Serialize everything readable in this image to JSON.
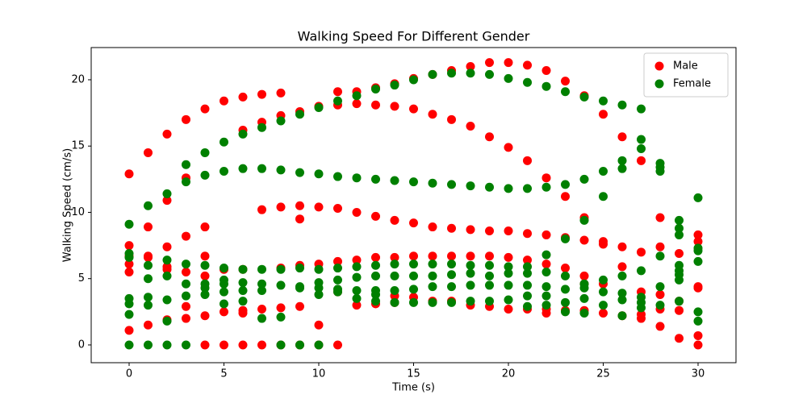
{
  "chart_data": {
    "type": "scatter",
    "title": "Walking Speed For Different Gender",
    "x_label": "Time (s)",
    "y_label": "Walking Speed (cm/s)",
    "xlim": [
      -2.0,
      32.0
    ],
    "ylim": [
      -1.34,
      22.43
    ],
    "xticks": [
      0,
      5,
      10,
      15,
      20,
      25,
      30
    ],
    "yticks": [
      0,
      5,
      10,
      15,
      20
    ],
    "legend": "upper right",
    "series": [
      {
        "name": "Male",
        "color": "#ff0000",
        "x": [
          0,
          0,
          0,
          0,
          0,
          0,
          1,
          1,
          1,
          1,
          1,
          2,
          2,
          2,
          2,
          2,
          2,
          3,
          3,
          3,
          3,
          3,
          3,
          4,
          4,
          4,
          4,
          4,
          4,
          5,
          5,
          5,
          5,
          6,
          6,
          6,
          6,
          6,
          6,
          7,
          7,
          7,
          7,
          7,
          8,
          8,
          8,
          8,
          8,
          8,
          9,
          9,
          9,
          9,
          9,
          9,
          10,
          10,
          10,
          10,
          10,
          11,
          11,
          11,
          11,
          11,
          11,
          12,
          12,
          12,
          12,
          12,
          13,
          13,
          13,
          13,
          13,
          14,
          14,
          14,
          14,
          14,
          14,
          15,
          15,
          15,
          15,
          15,
          16,
          16,
          16,
          16,
          16,
          17,
          17,
          17,
          17,
          17,
          18,
          18,
          18,
          18,
          18,
          19,
          19,
          19,
          19,
          19,
          20,
          20,
          20,
          20,
          20,
          21,
          21,
          21,
          21,
          21,
          22,
          22,
          22,
          22,
          22,
          22,
          23,
          23,
          23,
          23,
          23,
          24,
          24,
          24,
          24,
          24,
          24,
          25,
          25,
          25,
          25,
          25,
          26,
          26,
          26,
          26,
          27,
          27,
          27,
          27,
          27,
          28,
          28,
          28,
          28,
          28,
          29,
          29,
          29,
          29,
          30,
          30,
          30,
          30,
          30,
          30
        ],
        "values": [
          12.9,
          7.5,
          6.7,
          6.1,
          5.5,
          1.1,
          14.5,
          8.9,
          6.7,
          6.6,
          1.5,
          15.9,
          10.9,
          7.4,
          5.9,
          5.7,
          1.9,
          17.0,
          12.6,
          8.2,
          5.5,
          2.9,
          2.0,
          17.8,
          8.9,
          6.7,
          5.2,
          2.2,
          0,
          18.4,
          5.7,
          2.5,
          0,
          18.7,
          16.2,
          5.7,
          2.6,
          2.4,
          0,
          18.9,
          16.8,
          10.2,
          2.7,
          0,
          19.0,
          17.3,
          10.4,
          5.8,
          2.8,
          0,
          17.6,
          10.5,
          9.5,
          6.0,
          2.9,
          0,
          18.0,
          10.4,
          6.1,
          1.5,
          0,
          19.1,
          18.1,
          10.3,
          6.3,
          4.0,
          0,
          19.1,
          18.2,
          10.0,
          6.4,
          3.0,
          19.4,
          18.1,
          9.7,
          6.6,
          3.1,
          19.7,
          18.0,
          9.4,
          6.6,
          3.7,
          3.2,
          20.1,
          17.8,
          9.2,
          6.7,
          3.6,
          20.4,
          17.4,
          8.9,
          6.7,
          3.3,
          20.7,
          17.0,
          8.8,
          6.7,
          3.3,
          21.0,
          16.5,
          8.7,
          6.7,
          3.0,
          21.3,
          15.7,
          8.6,
          6.7,
          2.9,
          21.3,
          14.9,
          8.6,
          6.6,
          2.7,
          21.1,
          13.9,
          8.4,
          6.4,
          2.7,
          20.7,
          12.6,
          8.3,
          6.1,
          2.7,
          2.4,
          19.9,
          11.2,
          8.1,
          5.8,
          2.6,
          18.8,
          9.6,
          7.9,
          5.2,
          4.6,
          2.6,
          17.4,
          7.8,
          7.6,
          4.6,
          2.4,
          15.7,
          7.4,
          5.9,
          2.2,
          13.9,
          7.0,
          4.0,
          2.3,
          2.0,
          9.6,
          7.4,
          3.8,
          2.7,
          1.4,
          6.9,
          3.3,
          2.6,
          0.5,
          8.3,
          7.8,
          4.4,
          4.3,
          0.7,
          0
        ]
      },
      {
        "name": "Female",
        "color": "#008000",
        "x": [
          0,
          0,
          0,
          0,
          0,
          0,
          0,
          1,
          1,
          1,
          1,
          1,
          1,
          2,
          2,
          2,
          2,
          2,
          2,
          3,
          3,
          3,
          3,
          3,
          3,
          4,
          4,
          4,
          4,
          4,
          4,
          5,
          5,
          5,
          5,
          5,
          5,
          5,
          6,
          6,
          6,
          6,
          6,
          6,
          7,
          7,
          7,
          7,
          7,
          7,
          8,
          8,
          8,
          8,
          8,
          8,
          9,
          9,
          9,
          9,
          9,
          9,
          10,
          10,
          10,
          10,
          10,
          10,
          10,
          11,
          11,
          11,
          11,
          11,
          11,
          12,
          12,
          12,
          12,
          12,
          12,
          13,
          13,
          13,
          13,
          13,
          13,
          13,
          14,
          14,
          14,
          14,
          14,
          14,
          15,
          15,
          15,
          15,
          15,
          15,
          16,
          16,
          16,
          16,
          16,
          16,
          17,
          17,
          17,
          17,
          17,
          17,
          18,
          18,
          18,
          18,
          18,
          18,
          19,
          19,
          19,
          19,
          19,
          19,
          20,
          20,
          20,
          20,
          20,
          20,
          21,
          21,
          21,
          21,
          21,
          21,
          21,
          22,
          22,
          22,
          22,
          22,
          22,
          22,
          23,
          23,
          23,
          23,
          23,
          23,
          23,
          24,
          24,
          24,
          24,
          24,
          24,
          24,
          25,
          25,
          25,
          25,
          25,
          25,
          26,
          26,
          26,
          26,
          26,
          26,
          26,
          27,
          27,
          27,
          27,
          27,
          27,
          27,
          28,
          28,
          28,
          28,
          28,
          28,
          29,
          29,
          29,
          29,
          29,
          29,
          29,
          29,
          30,
          30,
          30,
          30,
          30,
          30
        ],
        "values": [
          9.1,
          6.9,
          6.6,
          3.5,
          3.1,
          2.3,
          0,
          10.5,
          6.0,
          5.0,
          3.6,
          3.0,
          0,
          11.4,
          6.4,
          5.2,
          3.4,
          1.8,
          0,
          13.6,
          12.3,
          6.1,
          4.6,
          3.7,
          0,
          14.5,
          12.8,
          6.0,
          4.6,
          4.3,
          3.8,
          15.3,
          13.1,
          5.8,
          4.9,
          4.6,
          4.0,
          3.1,
          15.9,
          13.3,
          5.7,
          4.7,
          4.1,
          3.3,
          16.4,
          13.3,
          5.7,
          4.6,
          4.1,
          2.0,
          16.9,
          13.2,
          5.7,
          4.5,
          2.1,
          0,
          17.4,
          13.0,
          5.8,
          4.4,
          4.3,
          0,
          17.9,
          12.9,
          5.7,
          4.7,
          4.3,
          3.8,
          0,
          18.4,
          12.7,
          5.8,
          4.9,
          4.2,
          4.0,
          18.8,
          12.6,
          5.9,
          5.1,
          4.1,
          3.5,
          19.3,
          12.5,
          6.0,
          5.2,
          4.1,
          3.8,
          3.3,
          19.6,
          12.4,
          6.1,
          5.2,
          4.1,
          3.2,
          20.0,
          12.3,
          6.1,
          5.2,
          4.2,
          3.2,
          20.4,
          12.2,
          6.1,
          5.2,
          4.4,
          3.2,
          20.5,
          12.1,
          6.1,
          5.3,
          4.4,
          3.2,
          20.5,
          12.0,
          6.0,
          5.4,
          4.5,
          3.3,
          20.4,
          11.9,
          6.0,
          5.2,
          4.5,
          3.3,
          20.1,
          11.8,
          5.9,
          5.4,
          4.5,
          3.4,
          19.8,
          11.8,
          5.9,
          5.4,
          4.5,
          3.7,
          2.9,
          19.5,
          11.9,
          6.8,
          5.5,
          4.4,
          3.7,
          3.0,
          19.1,
          12.1,
          8.0,
          5.2,
          4.2,
          3.2,
          2.5,
          18.7,
          12.5,
          9.4,
          4.6,
          4.3,
          3.5,
          2.4,
          18.4,
          13.1,
          11.2,
          4.9,
          4.0,
          3.0,
          18.1,
          13.9,
          13.3,
          5.2,
          3.9,
          3.4,
          2.2,
          17.8,
          15.5,
          14.8,
          5.6,
          3.6,
          3.2,
          2.8,
          13.7,
          13.4,
          13.1,
          6.7,
          4.4,
          3.0,
          9.4,
          8.8,
          8.3,
          6.0,
          5.6,
          5.3,
          4.9,
          3.3,
          11.1,
          7.3,
          7.1,
          6.3,
          2.5,
          1.8
        ]
      }
    ]
  }
}
